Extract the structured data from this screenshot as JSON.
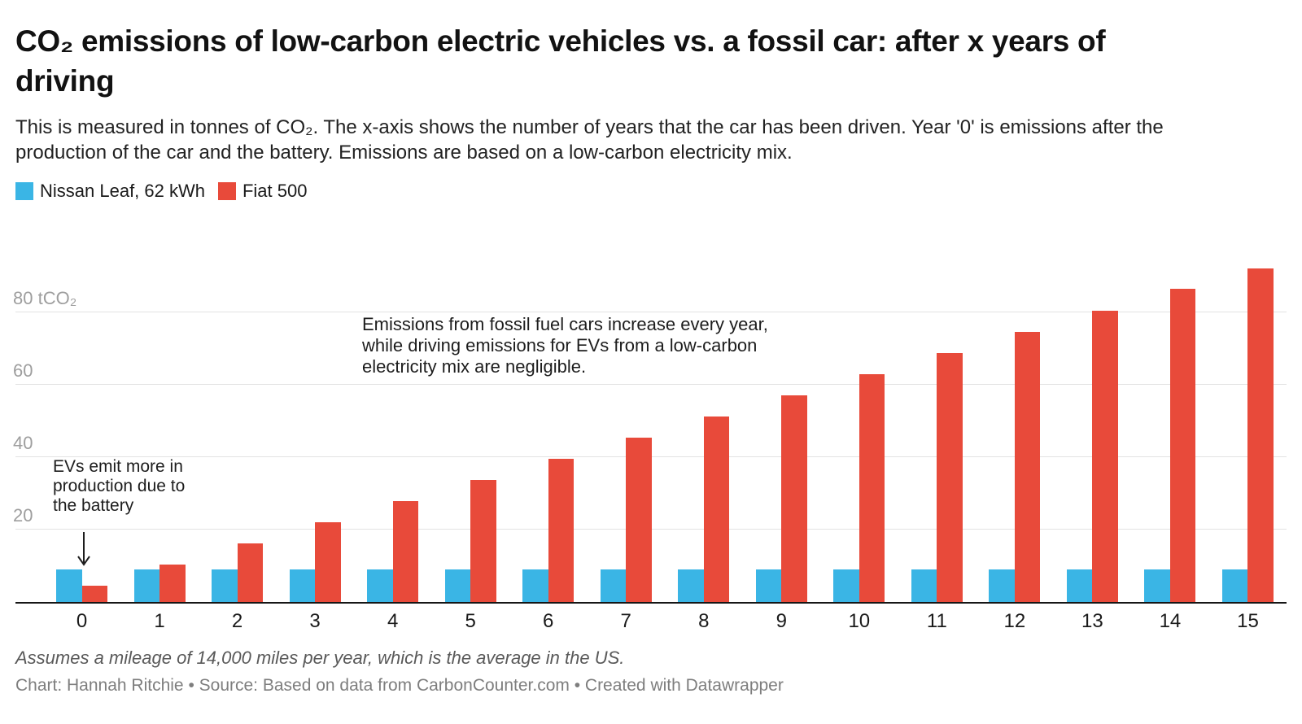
{
  "header": {
    "title": "CO₂ emissions of low-carbon electric vehicles vs. a fossil car: after x years of\ndriving",
    "description": "This is measured in tonnes of CO₂. The x-axis shows the number of years that the car has been driven. Year '0' is emissions after the\nproduction of the car and the battery. Emissions are based on a low-carbon electricity mix."
  },
  "legend": [
    {
      "label": "Nissan Leaf, 62 kWh",
      "color": "#3ab5e5"
    },
    {
      "label": "Fiat 500",
      "color": "#e84a3a"
    }
  ],
  "annotations": {
    "driving": "Emissions from fossil fuel cars increase every year,\nwhile driving emissions for EVs from a low-carbon\nelectricity mix are negligible.",
    "production": "EVs emit more in\nproduction due to\nthe battery",
    "arrow_icon": "down-arrow"
  },
  "footer": {
    "note": "Assumes a mileage of 14,000 miles per year, which is the average in the US.",
    "credit": "Chart: Hannah Ritchie • Source: Based on data from CarbonCounter.com • Created with Datawrapper"
  },
  "chart_data": {
    "type": "bar",
    "title": "CO₂ emissions of low-carbon electric vehicles vs. a fossil car: after x years of driving",
    "subtitle": "This is measured in tonnes of CO₂. The x-axis shows the number of years that the car has been driven. Year '0' is emissions after the production of the car and the battery. Emissions are based on a low-carbon electricity mix.",
    "xlabel": "years of driving",
    "ylabel": "tCO₂",
    "x": [
      0,
      1,
      2,
      3,
      4,
      5,
      6,
      7,
      8,
      9,
      10,
      11,
      12,
      13,
      14,
      15
    ],
    "series": [
      {
        "name": "Nissan Leaf, 62 kWh",
        "color": "#3ab5e5",
        "values": [
          8.9,
          8.9,
          8.9,
          8.9,
          8.9,
          8.9,
          8.9,
          8.9,
          8.9,
          8.9,
          8.9,
          8.9,
          8.9,
          8.9,
          8.9,
          8.9
        ]
      },
      {
        "name": "Fiat 500",
        "color": "#e84a3a",
        "values": [
          4.4,
          10.3,
          16.1,
          22.0,
          27.9,
          33.7,
          39.6,
          45.4,
          51.3,
          57.1,
          63.0,
          68.8,
          74.7,
          80.5,
          86.4,
          92.2
        ]
      }
    ],
    "ylim": [
      0,
      99.3
    ],
    "yticks": [
      {
        "value": 20,
        "label": "20"
      },
      {
        "value": 40,
        "label": "40"
      },
      {
        "value": 60,
        "label": "60"
      },
      {
        "value": 80,
        "label": "80 tCO₂"
      }
    ],
    "grid": "horizontal",
    "legend_position": "top-left",
    "annotations": [
      "Emissions from fossil fuel cars increase every year, while driving emissions for EVs from a low-carbon electricity mix are negligible.",
      "EVs emit more in production due to the battery"
    ]
  }
}
